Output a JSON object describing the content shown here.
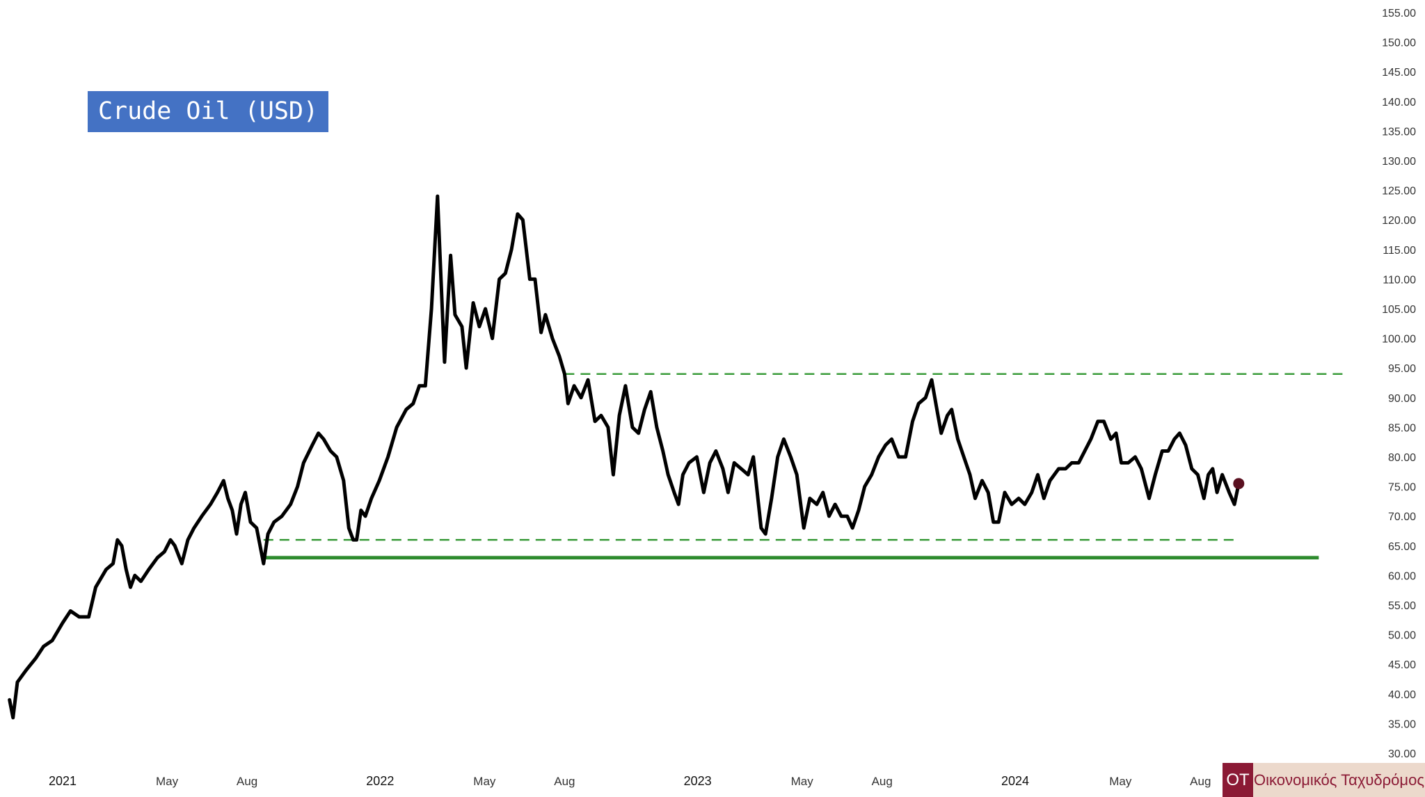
{
  "chart_data": {
    "type": "line",
    "title": "Crude Oil (USD)",
    "xlabel": "",
    "ylabel": "",
    "ylim": [
      30,
      155
    ],
    "y_ticks": [
      "30.00",
      "35.00",
      "40.00",
      "45.00",
      "50.00",
      "55.00",
      "60.00",
      "65.00",
      "70.00",
      "75.00",
      "80.00",
      "85.00",
      "90.00",
      "95.00",
      "100.00",
      "105.00",
      "110.00",
      "115.00",
      "120.00",
      "125.00",
      "130.00",
      "135.00",
      "140.00",
      "145.00",
      "150.00",
      "155.00"
    ],
    "x_ticks": [
      {
        "label": "2021",
        "date": "2021-01-01",
        "major": true
      },
      {
        "label": "May",
        "date": "2021-05-01",
        "major": false
      },
      {
        "label": "Aug",
        "date": "2021-08-01",
        "major": false
      },
      {
        "label": "2022",
        "date": "2022-01-01",
        "major": true
      },
      {
        "label": "May",
        "date": "2022-05-01",
        "major": false
      },
      {
        "label": "Aug",
        "date": "2022-08-01",
        "major": false
      },
      {
        "label": "2023",
        "date": "2023-01-01",
        "major": true
      },
      {
        "label": "May",
        "date": "2023-05-01",
        "major": false
      },
      {
        "label": "Aug",
        "date": "2023-08-01",
        "major": false
      },
      {
        "label": "2024",
        "date": "2024-01-01",
        "major": true
      },
      {
        "label": "May",
        "date": "2024-05-01",
        "major": false
      },
      {
        "label": "Aug",
        "date": "2024-08-01",
        "major": false
      }
    ],
    "grid": false,
    "series": [
      {
        "color": "#000000",
        "points": [
          [
            "2020-11-01",
            39
          ],
          [
            "2020-11-05",
            36
          ],
          [
            "2020-11-10",
            42
          ],
          [
            "2020-11-20",
            44
          ],
          [
            "2020-12-01",
            46
          ],
          [
            "2020-12-10",
            48
          ],
          [
            "2020-12-20",
            49
          ],
          [
            "2021-01-01",
            52
          ],
          [
            "2021-01-10",
            54
          ],
          [
            "2021-01-20",
            53
          ],
          [
            "2021-01-31",
            53
          ],
          [
            "2021-02-08",
            58
          ],
          [
            "2021-02-20",
            61
          ],
          [
            "2021-02-28",
            62
          ],
          [
            "2021-03-05",
            66
          ],
          [
            "2021-03-10",
            65
          ],
          [
            "2021-03-15",
            61
          ],
          [
            "2021-03-20",
            58
          ],
          [
            "2021-03-25",
            60
          ],
          [
            "2021-04-01",
            59
          ],
          [
            "2021-04-10",
            61
          ],
          [
            "2021-04-20",
            63
          ],
          [
            "2021-04-28",
            64
          ],
          [
            "2021-05-05",
            66
          ],
          [
            "2021-05-10",
            65
          ],
          [
            "2021-05-18",
            62
          ],
          [
            "2021-05-25",
            66
          ],
          [
            "2021-06-01",
            68
          ],
          [
            "2021-06-10",
            70
          ],
          [
            "2021-06-20",
            72
          ],
          [
            "2021-06-28",
            74
          ],
          [
            "2021-07-05",
            76
          ],
          [
            "2021-07-10",
            73
          ],
          [
            "2021-07-15",
            71
          ],
          [
            "2021-07-20",
            67
          ],
          [
            "2021-07-25",
            72
          ],
          [
            "2021-07-30",
            74
          ],
          [
            "2021-08-05",
            69
          ],
          [
            "2021-08-12",
            68
          ],
          [
            "2021-08-20",
            62
          ],
          [
            "2021-08-25",
            67
          ],
          [
            "2021-09-01",
            69
          ],
          [
            "2021-09-10",
            70
          ],
          [
            "2021-09-20",
            72
          ],
          [
            "2021-09-28",
            75
          ],
          [
            "2021-10-05",
            79
          ],
          [
            "2021-10-15",
            82
          ],
          [
            "2021-10-22",
            84
          ],
          [
            "2021-10-28",
            83
          ],
          [
            "2021-11-05",
            81
          ],
          [
            "2021-11-12",
            80
          ],
          [
            "2021-11-20",
            76
          ],
          [
            "2021-11-26",
            68
          ],
          [
            "2021-12-01",
            66
          ],
          [
            "2021-12-05",
            66
          ],
          [
            "2021-12-10",
            71
          ],
          [
            "2021-12-15",
            70
          ],
          [
            "2021-12-22",
            73
          ],
          [
            "2021-12-31",
            76
          ],
          [
            "2022-01-10",
            80
          ],
          [
            "2022-01-20",
            85
          ],
          [
            "2022-01-31",
            88
          ],
          [
            "2022-02-08",
            89
          ],
          [
            "2022-02-15",
            92
          ],
          [
            "2022-02-22",
            92
          ],
          [
            "2022-03-01",
            105
          ],
          [
            "2022-03-08",
            124
          ],
          [
            "2022-03-12",
            110
          ],
          [
            "2022-03-16",
            96
          ],
          [
            "2022-03-23",
            114
          ],
          [
            "2022-03-28",
            104
          ],
          [
            "2022-04-05",
            102
          ],
          [
            "2022-04-10",
            95
          ],
          [
            "2022-04-18",
            106
          ],
          [
            "2022-04-25",
            102
          ],
          [
            "2022-05-02",
            105
          ],
          [
            "2022-05-10",
            100
          ],
          [
            "2022-05-18",
            110
          ],
          [
            "2022-05-25",
            111
          ],
          [
            "2022-06-01",
            115
          ],
          [
            "2022-06-08",
            121
          ],
          [
            "2022-06-14",
            120
          ],
          [
            "2022-06-22",
            110
          ],
          [
            "2022-06-28",
            110
          ],
          [
            "2022-07-05",
            101
          ],
          [
            "2022-07-10",
            104
          ],
          [
            "2022-07-18",
            100
          ],
          [
            "2022-07-26",
            97
          ],
          [
            "2022-08-01",
            94
          ],
          [
            "2022-08-05",
            89
          ],
          [
            "2022-08-12",
            92
          ],
          [
            "2022-08-20",
            90
          ],
          [
            "2022-08-28",
            93
          ],
          [
            "2022-09-05",
            86
          ],
          [
            "2022-09-12",
            87
          ],
          [
            "2022-09-20",
            85
          ],
          [
            "2022-09-26",
            77
          ],
          [
            "2022-10-03",
            87
          ],
          [
            "2022-10-10",
            92
          ],
          [
            "2022-10-18",
            85
          ],
          [
            "2022-10-25",
            84
          ],
          [
            "2022-11-01",
            88
          ],
          [
            "2022-11-08",
            91
          ],
          [
            "2022-11-15",
            85
          ],
          [
            "2022-11-22",
            81
          ],
          [
            "2022-11-28",
            77
          ],
          [
            "2022-12-05",
            74
          ],
          [
            "2022-12-10",
            72
          ],
          [
            "2022-12-15",
            77
          ],
          [
            "2022-12-22",
            79
          ],
          [
            "2022-12-31",
            80
          ],
          [
            "2023-01-08",
            74
          ],
          [
            "2023-01-15",
            79
          ],
          [
            "2023-01-22",
            81
          ],
          [
            "2023-01-30",
            78
          ],
          [
            "2023-02-05",
            74
          ],
          [
            "2023-02-12",
            79
          ],
          [
            "2023-02-20",
            78
          ],
          [
            "2023-02-28",
            77
          ],
          [
            "2023-03-06",
            80
          ],
          [
            "2023-03-15",
            68
          ],
          [
            "2023-03-20",
            67
          ],
          [
            "2023-03-27",
            73
          ],
          [
            "2023-04-03",
            80
          ],
          [
            "2023-04-10",
            83
          ],
          [
            "2023-04-18",
            80
          ],
          [
            "2023-04-25",
            77
          ],
          [
            "2023-05-03",
            68
          ],
          [
            "2023-05-10",
            73
          ],
          [
            "2023-05-18",
            72
          ],
          [
            "2023-05-25",
            74
          ],
          [
            "2023-06-01",
            70
          ],
          [
            "2023-06-08",
            72
          ],
          [
            "2023-06-15",
            70
          ],
          [
            "2023-06-22",
            70
          ],
          [
            "2023-06-28",
            68
          ],
          [
            "2023-07-05",
            71
          ],
          [
            "2023-07-12",
            75
          ],
          [
            "2023-07-20",
            77
          ],
          [
            "2023-07-28",
            80
          ],
          [
            "2023-08-05",
            82
          ],
          [
            "2023-08-12",
            83
          ],
          [
            "2023-08-20",
            80
          ],
          [
            "2023-08-28",
            80
          ],
          [
            "2023-09-05",
            86
          ],
          [
            "2023-09-12",
            89
          ],
          [
            "2023-09-20",
            90
          ],
          [
            "2023-09-27",
            93
          ],
          [
            "2023-10-03",
            88
          ],
          [
            "2023-10-08",
            84
          ],
          [
            "2023-10-15",
            87
          ],
          [
            "2023-10-20",
            88
          ],
          [
            "2023-10-27",
            83
          ],
          [
            "2023-11-03",
            80
          ],
          [
            "2023-11-10",
            77
          ],
          [
            "2023-11-16",
            73
          ],
          [
            "2023-11-24",
            76
          ],
          [
            "2023-12-01",
            74
          ],
          [
            "2023-12-07",
            69
          ],
          [
            "2023-12-13",
            69
          ],
          [
            "2023-12-20",
            74
          ],
          [
            "2023-12-28",
            72
          ],
          [
            "2024-01-05",
            73
          ],
          [
            "2024-01-12",
            72
          ],
          [
            "2024-01-20",
            74
          ],
          [
            "2024-01-27",
            77
          ],
          [
            "2024-02-03",
            73
          ],
          [
            "2024-02-10",
            76
          ],
          [
            "2024-02-20",
            78
          ],
          [
            "2024-02-28",
            78
          ],
          [
            "2024-03-06",
            79
          ],
          [
            "2024-03-14",
            79
          ],
          [
            "2024-03-21",
            81
          ],
          [
            "2024-03-28",
            83
          ],
          [
            "2024-04-05",
            86
          ],
          [
            "2024-04-12",
            86
          ],
          [
            "2024-04-20",
            83
          ],
          [
            "2024-04-26",
            84
          ],
          [
            "2024-05-02",
            79
          ],
          [
            "2024-05-10",
            79
          ],
          [
            "2024-05-18",
            80
          ],
          [
            "2024-05-25",
            78
          ],
          [
            "2024-06-03",
            73
          ],
          [
            "2024-06-10",
            77
          ],
          [
            "2024-06-18",
            81
          ],
          [
            "2024-06-25",
            81
          ],
          [
            "2024-07-02",
            83
          ],
          [
            "2024-07-08",
            84
          ],
          [
            "2024-07-15",
            82
          ],
          [
            "2024-07-22",
            78
          ],
          [
            "2024-07-29",
            77
          ],
          [
            "2024-08-05",
            73
          ],
          [
            "2024-08-10",
            77
          ],
          [
            "2024-08-15",
            78
          ],
          [
            "2024-08-20",
            74
          ],
          [
            "2024-08-26",
            77
          ],
          [
            "2024-09-03",
            74
          ],
          [
            "2024-09-09",
            72
          ],
          [
            "2024-09-14",
            75.5
          ]
        ]
      }
    ],
    "last_point_color": "#5a1020",
    "horizontal_levels": [
      {
        "value": 94,
        "style": "dashed",
        "color": "#3a9b3a",
        "from": "2022-08-01",
        "to": "2025-01-15"
      },
      {
        "value": 66,
        "style": "dashed",
        "color": "#3a9b3a",
        "from": "2021-08-20",
        "to": "2024-09-15"
      },
      {
        "value": 63,
        "style": "solid",
        "color": "#2e8b2e",
        "from": "2021-08-20",
        "to": "2024-12-15"
      }
    ]
  },
  "branding": {
    "mark": "OT",
    "name": "Οικονομικός Ταχυδρόμος"
  }
}
